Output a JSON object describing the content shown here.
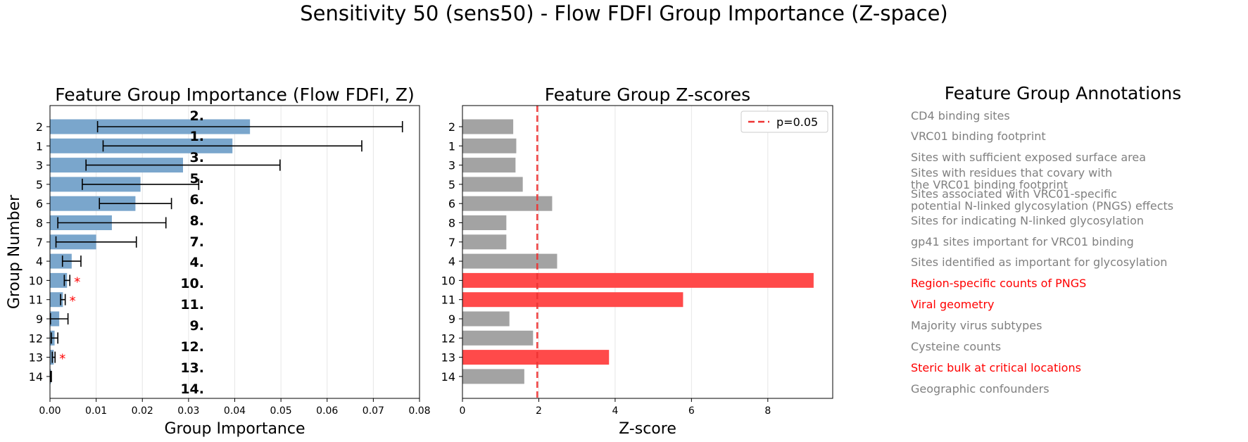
{
  "suptitle": "Sensitivity 50 (sens50) - Flow FDFI Group Importance (Z-space)",
  "colors": {
    "importance_bar": "#7aa6cc",
    "z_bar": "#a3a3a3",
    "z_sig_bar": "#ff4a4a",
    "threshold_line": "#ee3333",
    "star": "#ff0000",
    "annotation_text": "#808080",
    "annotation_sig_text": "#ff0000"
  },
  "chart_data": [
    {
      "type": "bar",
      "orientation": "horizontal",
      "title": "Feature Group Importance (Flow FDFI, Z)",
      "xlabel": "Group Importance",
      "ylabel": "Group Number",
      "xlim": [
        0,
        0.08
      ],
      "xticks": [
        "0.00",
        "0.01",
        "0.02",
        "0.03",
        "0.04",
        "0.05",
        "0.06",
        "0.07",
        "0.08"
      ],
      "grid": "x",
      "categories": [
        "2",
        "1",
        "3",
        "5",
        "6",
        "8",
        "7",
        "4",
        "10",
        "11",
        "9",
        "12",
        "13",
        "14"
      ],
      "values": [
        0.0433,
        0.0395,
        0.0288,
        0.0196,
        0.0185,
        0.0134,
        0.01,
        0.0047,
        0.0037,
        0.0028,
        0.002,
        0.001,
        0.0008,
        0.0002
      ],
      "error": [
        0.033,
        0.028,
        0.021,
        0.0126,
        0.0078,
        0.0117,
        0.0087,
        0.002,
        0.0006,
        0.0005,
        0.0019,
        0.0007,
        0.0003,
        0.0001
      ],
      "significant_marker": "*",
      "significant": [
        "10",
        "11",
        "13"
      ]
    },
    {
      "type": "bar",
      "orientation": "horizontal",
      "title": "Feature Group Z-scores",
      "xlabel": "Z-score",
      "xlim": [
        0,
        9.7
      ],
      "xticks": [
        "0",
        "2",
        "4",
        "6",
        "8"
      ],
      "grid": "x",
      "categories": [
        "2",
        "1",
        "3",
        "5",
        "6",
        "8",
        "7",
        "4",
        "10",
        "11",
        "9",
        "12",
        "13",
        "14"
      ],
      "values": [
        1.33,
        1.41,
        1.39,
        1.58,
        2.35,
        1.15,
        1.15,
        2.48,
        9.2,
        5.78,
        1.23,
        1.85,
        3.84,
        1.62
      ],
      "significant": [
        "10",
        "11",
        "13"
      ],
      "threshold": {
        "value": 1.96,
        "label": "p=0.05"
      },
      "legend": "top-right"
    }
  ],
  "annotations": {
    "title": "Feature Group Annotations",
    "items": [
      {
        "num": "2.",
        "lines": [
          "CD4 binding sites"
        ],
        "sig": false
      },
      {
        "num": "1.",
        "lines": [
          "VRC01 binding footprint"
        ],
        "sig": false
      },
      {
        "num": "3.",
        "lines": [
          "Sites with sufficient exposed surface area"
        ],
        "sig": false
      },
      {
        "num": "5.",
        "lines": [
          "Sites with residues that covary with",
          "the VRC01 binding footprint"
        ],
        "sig": false
      },
      {
        "num": "6.",
        "lines": [
          "Sites associated with VRC01-specific",
          "potential N-linked glycosylation (PNGS) effects"
        ],
        "sig": false
      },
      {
        "num": "8.",
        "lines": [
          "Sites for indicating N-linked glycosylation"
        ],
        "sig": false
      },
      {
        "num": "7.",
        "lines": [
          "gp41 sites important for VRC01 binding"
        ],
        "sig": false
      },
      {
        "num": "4.",
        "lines": [
          "Sites identified as important for glycosylation"
        ],
        "sig": false
      },
      {
        "num": "10.",
        "lines": [
          "Region-specific counts of PNGS"
        ],
        "sig": true
      },
      {
        "num": "11.",
        "lines": [
          "Viral geometry"
        ],
        "sig": true
      },
      {
        "num": "9.",
        "lines": [
          "Majority virus subtypes"
        ],
        "sig": false
      },
      {
        "num": "12.",
        "lines": [
          "Cysteine counts"
        ],
        "sig": false
      },
      {
        "num": "13.",
        "lines": [
          "Steric bulk at critical locations"
        ],
        "sig": true
      },
      {
        "num": "14.",
        "lines": [
          "Geographic confounders"
        ],
        "sig": false
      }
    ]
  }
}
